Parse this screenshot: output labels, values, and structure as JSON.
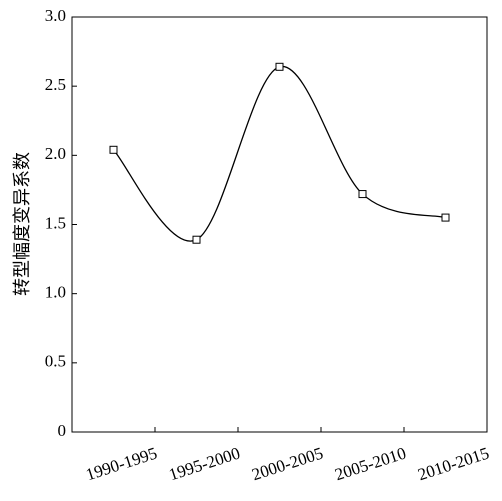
{
  "chart_data": {
    "type": "line",
    "y_label": "转型幅度变异系数",
    "categories": [
      "1990-1995",
      "1995-2000",
      "2000-2005",
      "2005-2010",
      "2010-2015"
    ],
    "series": [
      {
        "name": null,
        "color": "#000000",
        "values": [
          2.04,
          1.39,
          2.64,
          1.72,
          1.55
        ]
      }
    ],
    "ylim": [
      0,
      3
    ],
    "yticks": [
      0,
      0.5,
      {
        "value": 1,
        "label": "1.0"
      },
      1.5,
      {
        "value": 2,
        "label": "2.0"
      },
      2.5,
      {
        "value": 3,
        "label": "3.0"
      }
    ],
    "smooth": true,
    "markers": "square",
    "grid": false
  }
}
